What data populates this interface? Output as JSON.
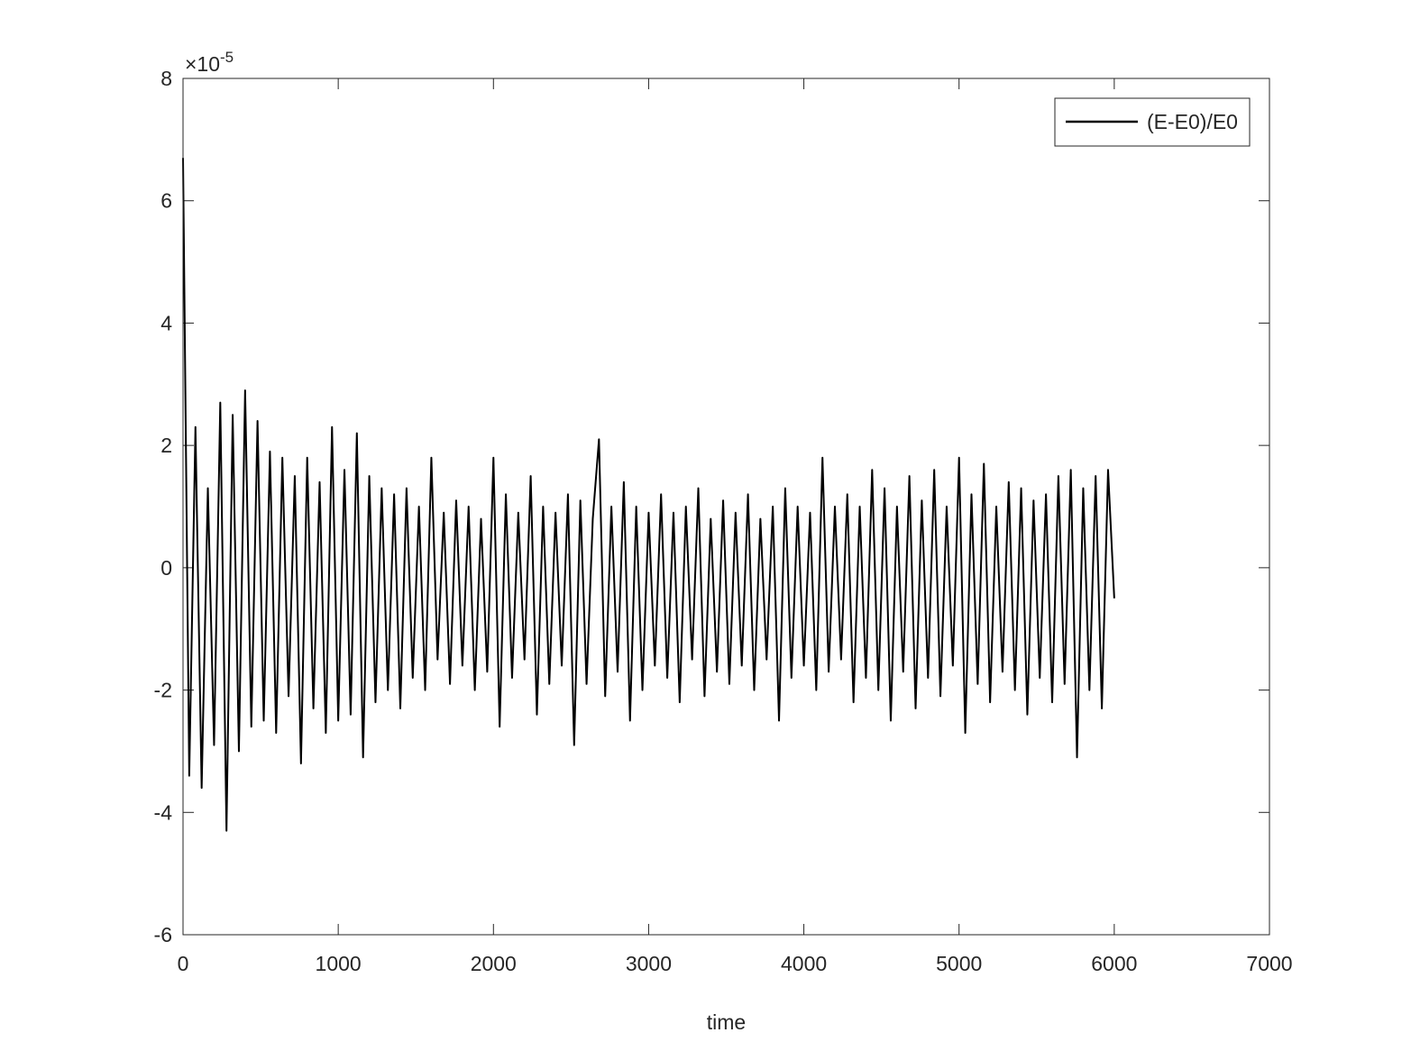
{
  "chart_data": {
    "type": "line",
    "xlabel": "time",
    "y_multiplier": {
      "base": "×10",
      "exponent": "-5"
    },
    "xlim": [
      0,
      7000
    ],
    "xticks": [
      0,
      1000,
      2000,
      3000,
      4000,
      5000,
      6000,
      7000
    ],
    "ylim": [
      -6,
      8
    ],
    "yticks": [
      -6,
      -4,
      -2,
      0,
      2,
      4,
      6,
      8
    ],
    "legend": "upper right",
    "x": [
      0,
      40,
      80,
      120,
      160,
      200,
      240,
      280,
      320,
      360,
      400,
      440,
      480,
      520,
      560,
      600,
      640,
      680,
      720,
      760,
      800,
      840,
      880,
      920,
      960,
      1000,
      1040,
      1080,
      1120,
      1160,
      1200,
      1240,
      1280,
      1320,
      1360,
      1400,
      1440,
      1480,
      1520,
      1560,
      1600,
      1640,
      1680,
      1720,
      1760,
      1800,
      1840,
      1880,
      1920,
      1960,
      2000,
      2040,
      2080,
      2120,
      2160,
      2200,
      2240,
      2280,
      2320,
      2360,
      2400,
      2440,
      2480,
      2520,
      2560,
      2600,
      2640,
      2680,
      2720,
      2760,
      2800,
      2840,
      2880,
      2920,
      2960,
      3000,
      3040,
      3080,
      3120,
      3160,
      3200,
      3240,
      3280,
      3320,
      3360,
      3400,
      3440,
      3480,
      3520,
      3560,
      3600,
      3640,
      3680,
      3720,
      3760,
      3800,
      3840,
      3880,
      3920,
      3960,
      4000,
      4040,
      4080,
      4120,
      4160,
      4200,
      4240,
      4280,
      4320,
      4360,
      4400,
      4440,
      4480,
      4520,
      4560,
      4600,
      4640,
      4680,
      4720,
      4760,
      4800,
      4840,
      4880,
      4920,
      4960,
      5000,
      5040,
      5080,
      5120,
      5160,
      5200,
      5240,
      5280,
      5320,
      5360,
      5400,
      5440,
      5480,
      5520,
      5560,
      5600,
      5640,
      5680,
      5720,
      5760,
      5800,
      5840,
      5880,
      5920,
      5960,
      6000
    ],
    "series": [
      {
        "name": "(E-E0)/E0",
        "color": "#000000",
        "values": [
          6.7,
          -3.4,
          2.3,
          -3.6,
          1.3,
          -2.9,
          2.7,
          -4.3,
          2.5,
          -3.0,
          2.9,
          -2.6,
          2.4,
          -2.5,
          1.9,
          -2.7,
          1.8,
          -2.1,
          1.5,
          -3.2,
          1.8,
          -2.3,
          1.4,
          -2.7,
          2.3,
          -2.5,
          1.6,
          -2.4,
          2.2,
          -3.1,
          1.5,
          -2.2,
          1.3,
          -2.0,
          1.2,
          -2.3,
          1.3,
          -1.8,
          1.0,
          -2.0,
          1.8,
          -1.5,
          0.9,
          -1.9,
          1.1,
          -1.6,
          1.0,
          -2.0,
          0.8,
          -1.7,
          1.8,
          -2.6,
          1.2,
          -1.8,
          0.9,
          -1.5,
          1.5,
          -2.4,
          1.0,
          -1.9,
          0.9,
          -1.6,
          1.2,
          -2.9,
          1.1,
          -1.9,
          0.8,
          2.1,
          -2.1,
          1.0,
          -1.7,
          1.4,
          -2.5,
          1.0,
          -2.0,
          0.9,
          -1.6,
          1.2,
          -1.8,
          0.9,
          -2.2,
          1.0,
          -1.5,
          1.3,
          -2.1,
          0.8,
          -1.7,
          1.1,
          -1.9,
          0.9,
          -1.6,
          1.2,
          -2.0,
          0.8,
          -1.5,
          1.0,
          -2.5,
          1.3,
          -1.8,
          1.0,
          -1.6,
          0.9,
          -2.0,
          1.8,
          -1.7,
          1.0,
          -1.5,
          1.2,
          -2.2,
          1.0,
          -1.8,
          1.6,
          -2.0,
          1.3,
          -2.5,
          1.0,
          -1.7,
          1.5,
          -2.3,
          1.1,
          -1.8,
          1.6,
          -2.1,
          1.0,
          -1.6,
          1.8,
          -2.7,
          1.2,
          -1.9,
          1.7,
          -2.2,
          1.0,
          -1.7,
          1.4,
          -2.0,
          1.3,
          -2.4,
          1.1,
          -1.8,
          1.2,
          -2.2,
          1.5,
          -1.9,
          1.6,
          -3.1,
          1.3,
          -2.0,
          1.5,
          -2.3,
          1.6,
          -0.5
        ]
      }
    ]
  }
}
